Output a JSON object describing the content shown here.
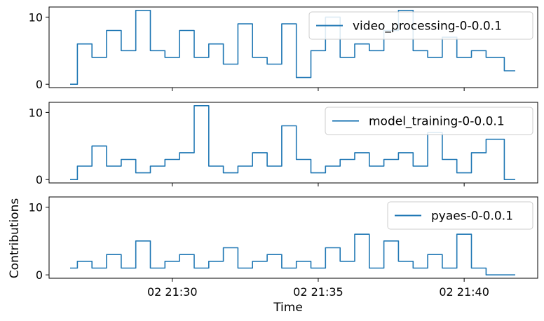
{
  "chart_data": {
    "type": "line",
    "sharex": true,
    "sharey": true,
    "xlabel": "Time",
    "ylabel": "Contributions",
    "x_range": [
      "02 21:26:30",
      "02 21:41:45"
    ],
    "x_ticks": [
      "02 21:30",
      "02 21:35",
      "02 21:40"
    ],
    "y_ticks": [
      0,
      10
    ],
    "ylim": [
      -0.5,
      11.5
    ],
    "color": "#1f77b4",
    "legend_loc": "upper right",
    "subplots": [
      {
        "legend": "video_processing-0-0.0.1",
        "series": {
          "name": "video_processing-0-0.0.1",
          "x": [
            "21:26:30",
            "21:27:00",
            "21:27:30",
            "21:28:00",
            "21:28:30",
            "21:29:00",
            "21:29:30",
            "21:30:00",
            "21:30:30",
            "21:31:00",
            "21:31:30",
            "21:32:00",
            "21:32:30",
            "21:33:00",
            "21:33:30",
            "21:34:00",
            "21:34:30",
            "21:35:00",
            "21:35:30",
            "21:36:00",
            "21:36:30",
            "21:37:00",
            "21:37:30",
            "21:38:00",
            "21:38:30",
            "21:39:00",
            "21:39:30",
            "21:40:00",
            "21:40:30",
            "21:41:00",
            "21:41:45"
          ],
          "values": [
            0,
            6,
            4,
            8,
            5,
            11,
            5,
            4,
            8,
            4,
            6,
            3,
            9,
            4,
            3,
            9,
            1,
            5,
            10,
            4,
            6,
            5,
            8,
            11,
            5,
            4,
            7,
            4,
            5,
            4,
            2
          ]
        }
      },
      {
        "legend": "model_training-0-0.0.1",
        "series": {
          "name": "model_training-0-0.0.1",
          "x": [
            "21:26:30",
            "21:27:00",
            "21:27:30",
            "21:28:00",
            "21:28:30",
            "21:29:00",
            "21:29:30",
            "21:30:00",
            "21:30:30",
            "21:31:00",
            "21:31:30",
            "21:32:00",
            "21:32:30",
            "21:33:00",
            "21:33:30",
            "21:34:00",
            "21:34:30",
            "21:35:00",
            "21:35:30",
            "21:36:00",
            "21:36:30",
            "21:37:00",
            "21:37:30",
            "21:38:00",
            "21:38:30",
            "21:39:00",
            "21:39:30",
            "21:40:00",
            "21:40:30",
            "21:41:00",
            "21:41:45"
          ],
          "values": [
            0,
            2,
            5,
            2,
            3,
            1,
            2,
            3,
            4,
            11,
            2,
            1,
            2,
            4,
            2,
            8,
            3,
            1,
            2,
            3,
            4,
            2,
            3,
            4,
            2,
            7,
            3,
            1,
            4,
            6,
            0
          ]
        }
      },
      {
        "legend": "pyaes-0-0.0.1",
        "series": {
          "name": "pyaes-0-0.0.1",
          "x": [
            "21:26:30",
            "21:27:00",
            "21:27:30",
            "21:28:00",
            "21:28:30",
            "21:29:00",
            "21:29:30",
            "21:30:00",
            "21:30:30",
            "21:31:00",
            "21:31:30",
            "21:32:00",
            "21:32:30",
            "21:33:00",
            "21:33:30",
            "21:34:00",
            "21:34:30",
            "21:35:00",
            "21:35:30",
            "21:36:00",
            "21:36:30",
            "21:37:00",
            "21:37:30",
            "21:38:00",
            "21:38:30",
            "21:39:00",
            "21:39:30",
            "21:40:00",
            "21:40:30",
            "21:41:00",
            "21:41:45"
          ],
          "values": [
            1,
            2,
            1,
            3,
            1,
            5,
            1,
            2,
            3,
            1,
            2,
            4,
            1,
            2,
            3,
            1,
            2,
            1,
            4,
            2,
            6,
            1,
            5,
            2,
            1,
            3,
            1,
            6,
            1,
            0,
            0
          ]
        }
      }
    ]
  }
}
